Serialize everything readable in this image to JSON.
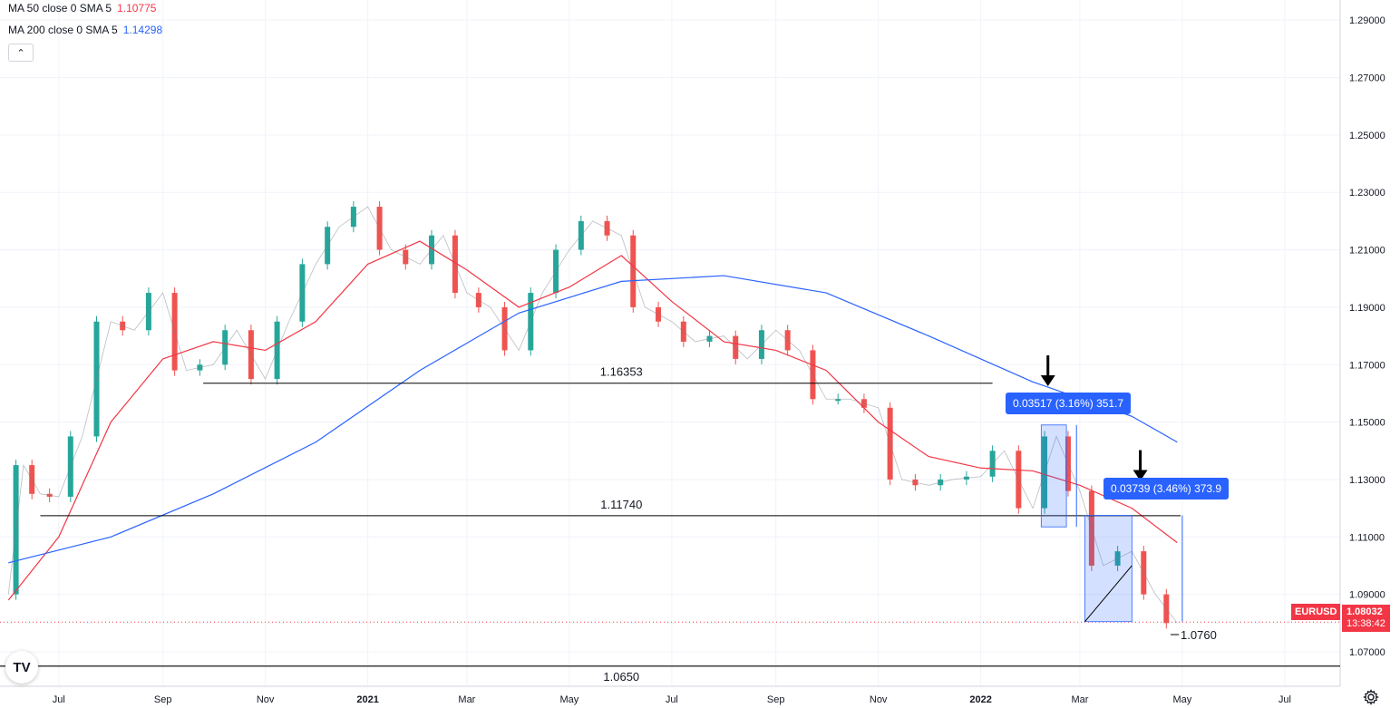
{
  "legend": {
    "ma50": {
      "label": "MA 50 close 0 SMA 5",
      "value": "1.10775",
      "color": "#f23645"
    },
    "ma200": {
      "label": "MA 200 close 0 SMA 5",
      "value": "1.14298",
      "color": "#2962ff"
    },
    "collapse_icon": "chevron-up-icon"
  },
  "price_axis": {
    "ticks": [
      "1.29000",
      "1.27000",
      "1.25000",
      "1.23000",
      "1.21000",
      "1.19000",
      "1.17000",
      "1.15000",
      "1.13000",
      "1.11000",
      "1.09000",
      "1.07000"
    ]
  },
  "time_axis": {
    "ticks": [
      "Jul",
      "Sep",
      "Nov",
      "2021",
      "Mar",
      "May",
      "Jul",
      "Sep",
      "Nov",
      "2022",
      "Mar",
      "May",
      "Jul"
    ]
  },
  "symbol_tag": "EURUSD",
  "last_price": {
    "price": "1.08032",
    "countdown": "13:38:42",
    "color": "#f23645"
  },
  "annotations": {
    "level_1": "1.16353",
    "level_2": "1.11740",
    "level_3": "1.0650",
    "level_4": "1.0760",
    "measure_1": "0.03517 (3.16%) 351.7",
    "measure_2": "0.03739 (3.46%) 373.9"
  },
  "logo": "TV",
  "settings_icon": "gear-icon",
  "chart_data": {
    "type": "line",
    "title": "",
    "ylim": [
      1.058,
      1.297
    ],
    "x_ticks": [
      "Jul",
      "Sep",
      "Nov",
      "2021",
      "Mar",
      "May",
      "Jul",
      "Sep",
      "Nov",
      "2022",
      "Mar",
      "May",
      "Jul"
    ],
    "y_ticks": [
      1.29,
      1.27,
      1.25,
      1.23,
      1.21,
      1.19,
      1.17,
      1.15,
      1.13,
      1.11,
      1.09,
      1.07
    ],
    "horizontal_levels": [
      1.16353,
      1.1174,
      1.065,
      1.076
    ],
    "series": [
      {
        "name": "EURUSD",
        "x": [
          "2020-06-01",
          "2020-06-10",
          "2020-06-20",
          "2020-07-01",
          "2020-07-15",
          "2020-08-01",
          "2020-08-15",
          "2020-09-01",
          "2020-09-15",
          "2020-10-01",
          "2020-10-15",
          "2020-11-01",
          "2020-11-15",
          "2020-12-01",
          "2020-12-15",
          "2021-01-01",
          "2021-01-15",
          "2021-02-01",
          "2021-02-15",
          "2021-03-01",
          "2021-03-15",
          "2021-04-01",
          "2021-04-15",
          "2021-05-01",
          "2021-05-15",
          "2021-06-01",
          "2021-06-15",
          "2021-07-01",
          "2021-07-15",
          "2021-08-01",
          "2021-08-15",
          "2021-09-01",
          "2021-09-15",
          "2021-10-01",
          "2021-10-15",
          "2021-11-01",
          "2021-11-15",
          "2021-12-01",
          "2021-12-15",
          "2022-01-01",
          "2022-01-15",
          "2022-02-01",
          "2022-02-15",
          "2022-03-01",
          "2022-03-15",
          "2022-04-01",
          "2022-04-15",
          "2022-04-28"
        ],
        "y": [
          1.09,
          1.135,
          1.125,
          1.124,
          1.145,
          1.185,
          1.182,
          1.195,
          1.168,
          1.17,
          1.182,
          1.165,
          1.185,
          1.205,
          1.218,
          1.225,
          1.21,
          1.205,
          1.215,
          1.195,
          1.19,
          1.175,
          1.195,
          1.21,
          1.22,
          1.215,
          1.19,
          1.185,
          1.178,
          1.18,
          1.172,
          1.182,
          1.175,
          1.158,
          1.158,
          1.155,
          1.13,
          1.128,
          1.13,
          1.131,
          1.14,
          1.12,
          1.145,
          1.126,
          1.1,
          1.105,
          1.09,
          1.08
        ]
      },
      {
        "name": "MA 50 close 0 SMA 5",
        "x": [
          "2020-06-01",
          "2020-07-01",
          "2020-08-01",
          "2020-09-01",
          "2020-10-01",
          "2020-11-01",
          "2020-12-01",
          "2021-01-01",
          "2021-02-01",
          "2021-03-01",
          "2021-04-01",
          "2021-05-01",
          "2021-06-01",
          "2021-07-01",
          "2021-08-01",
          "2021-09-01",
          "2021-10-01",
          "2021-11-01",
          "2021-12-01",
          "2022-01-01",
          "2022-02-01",
          "2022-03-01",
          "2022-04-01",
          "2022-04-28"
        ],
        "y": [
          1.088,
          1.11,
          1.15,
          1.172,
          1.178,
          1.175,
          1.185,
          1.205,
          1.213,
          1.203,
          1.19,
          1.197,
          1.208,
          1.192,
          1.178,
          1.175,
          1.168,
          1.15,
          1.138,
          1.134,
          1.133,
          1.128,
          1.12,
          1.108
        ]
      },
      {
        "name": "MA 200 close 0 SMA 5",
        "x": [
          "2020-06-01",
          "2020-08-01",
          "2020-10-01",
          "2020-12-01",
          "2021-02-01",
          "2021-04-01",
          "2021-06-01",
          "2021-08-01",
          "2021-10-01",
          "2021-12-01",
          "2022-02-01",
          "2022-04-01",
          "2022-04-28"
        ],
        "y": [
          1.101,
          1.11,
          1.125,
          1.143,
          1.168,
          1.188,
          1.199,
          1.201,
          1.195,
          1.18,
          1.164,
          1.152,
          1.143
        ]
      }
    ]
  }
}
